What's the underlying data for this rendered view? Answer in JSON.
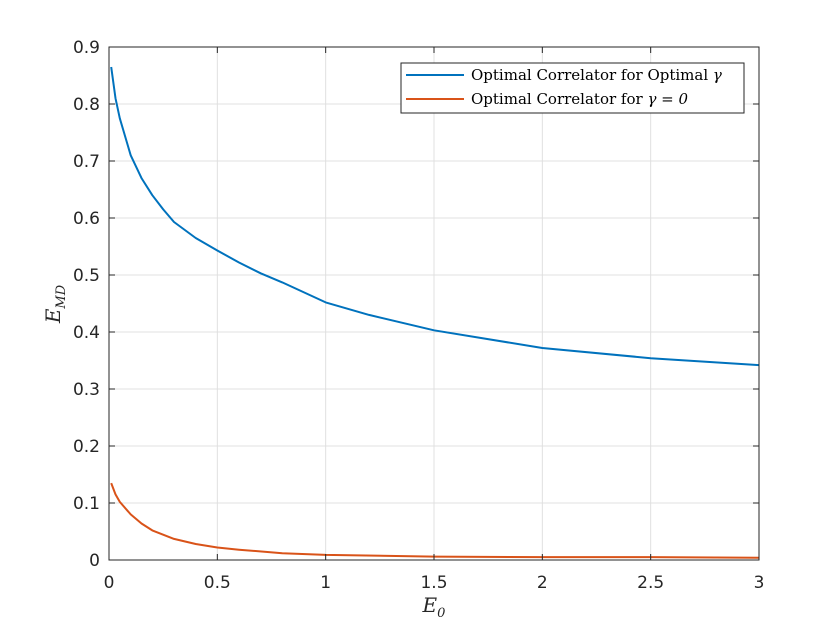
{
  "chart_data": {
    "type": "line",
    "xlabel": {
      "main": "E",
      "sub": "0"
    },
    "ylabel": {
      "main": "E",
      "sub": "MD"
    },
    "xlim": [
      0,
      3
    ],
    "ylim": [
      0,
      0.9
    ],
    "xticks": [
      0,
      0.5,
      1,
      1.5,
      2,
      2.5,
      3
    ],
    "xtick_labels": [
      "0",
      "0.5",
      "1",
      "1.5",
      "2",
      "2.5",
      "3"
    ],
    "yticks": [
      0,
      0.1,
      0.2,
      0.3,
      0.4,
      0.5,
      0.6,
      0.7,
      0.8,
      0.9
    ],
    "ytick_labels": [
      "0",
      "0.1",
      "0.2",
      "0.3",
      "0.4",
      "0.5",
      "0.6",
      "0.7",
      "0.8",
      "0.9"
    ],
    "grid": true,
    "legend_position": "top-right",
    "series": [
      {
        "name": "Optimal Correlator for Optimal γ",
        "legend_text": "Optimal Correlator for Optimal ",
        "legend_symbol": "γ",
        "color": "#0072BD",
        "x": [
          0.01,
          0.03,
          0.05,
          0.1,
          0.15,
          0.2,
          0.25,
          0.3,
          0.4,
          0.5,
          0.6,
          0.7,
          0.8,
          1.0,
          1.2,
          1.5,
          2.0,
          2.5,
          3.0
        ],
        "y": [
          0.865,
          0.81,
          0.775,
          0.71,
          0.67,
          0.64,
          0.615,
          0.593,
          0.565,
          0.543,
          0.522,
          0.503,
          0.487,
          0.452,
          0.43,
          0.403,
          0.372,
          0.354,
          0.342
        ]
      },
      {
        "name": "Optimal Correlator for γ = 0",
        "legend_text": "Optimal Correlator for ",
        "legend_symbol": "γ = 0",
        "color": "#D95319",
        "x": [
          0.01,
          0.03,
          0.05,
          0.1,
          0.15,
          0.2,
          0.3,
          0.4,
          0.5,
          0.6,
          0.8,
          1.0,
          1.5,
          2.0,
          2.5,
          3.0
        ],
        "y": [
          0.135,
          0.115,
          0.102,
          0.08,
          0.064,
          0.052,
          0.037,
          0.028,
          0.022,
          0.018,
          0.012,
          0.009,
          0.006,
          0.005,
          0.005,
          0.004
        ]
      }
    ]
  }
}
